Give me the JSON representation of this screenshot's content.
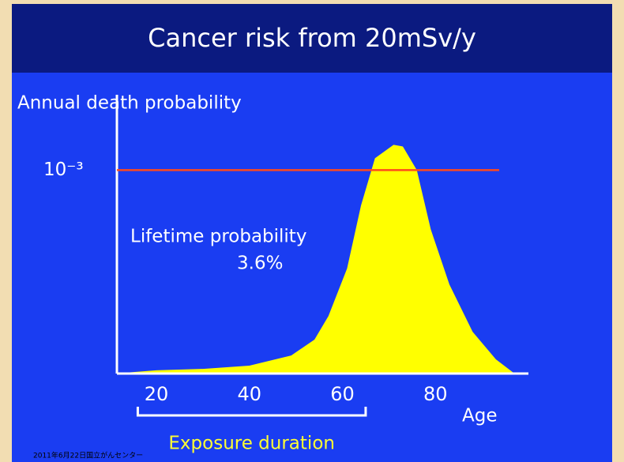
{
  "chart_data": {
    "type": "area",
    "title": "Cancer risk from 20mSv/y",
    "y_label": "Annual death probability",
    "x_label": "Age",
    "x": [
      11,
      20,
      30,
      40,
      49,
      54,
      57,
      61,
      64,
      67,
      71,
      73,
      76,
      79,
      83,
      88,
      93,
      97
    ],
    "series": [
      {
        "name": "Annual death probability",
        "color": "#ffff00",
        "values": [
          0,
          1.6e-05,
          2.3e-05,
          3.9e-05,
          8.9e-05,
          0.000167,
          0.000283,
          0.000516,
          0.000826,
          0.001058,
          0.001124,
          0.001116,
          0.001,
          0.000709,
          0.000438,
          0.000205,
          7e-05,
          0
        ]
      }
    ],
    "xlim": [
      11,
      100
    ],
    "xticks": [
      20,
      40,
      60,
      80
    ],
    "ylim": [
      0,
      0.00137
    ],
    "yticks": [
      {
        "value": 0.001,
        "label": "10⁻³"
      }
    ],
    "grid": true,
    "grid_color": "#ff4a1c",
    "annotations": [
      "Lifetime probability",
      "3.6%"
    ],
    "exposure_range": [
      16,
      65
    ],
    "exposure_label": "Exposure duration",
    "footer": "2011年6月22日国立がんセンター"
  }
}
